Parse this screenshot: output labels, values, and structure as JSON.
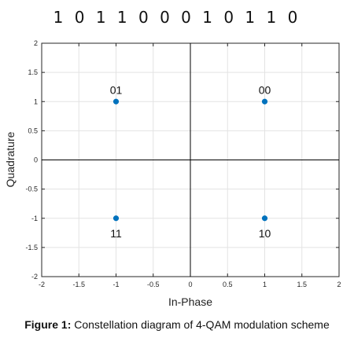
{
  "header": {
    "bit_sequence": "1 0 1 1 0 0 0 1 0 1 1 0"
  },
  "caption": {
    "prefix": "Figure 1:",
    "text": "Constellation diagram of 4-QAM modulation scheme"
  },
  "chart_data": {
    "type": "scatter",
    "xlabel": "In-Phase",
    "ylabel": "Quadrature",
    "xlim": [
      -2,
      2
    ],
    "ylim": [
      -2,
      2
    ],
    "xticks": [
      -2,
      -1.5,
      -1,
      -0.5,
      0,
      0.5,
      1,
      1.5,
      2
    ],
    "yticks": [
      -2,
      -1.5,
      -1,
      -0.5,
      0,
      0.5,
      1,
      1.5,
      2
    ],
    "grid": true,
    "point_color": "#0072BD",
    "points": [
      {
        "x": -1,
        "y": 1,
        "label": "01"
      },
      {
        "x": 1,
        "y": 1,
        "label": "00"
      },
      {
        "x": -1,
        "y": -1,
        "label": "11"
      },
      {
        "x": 1,
        "y": -1,
        "label": "10"
      }
    ]
  }
}
